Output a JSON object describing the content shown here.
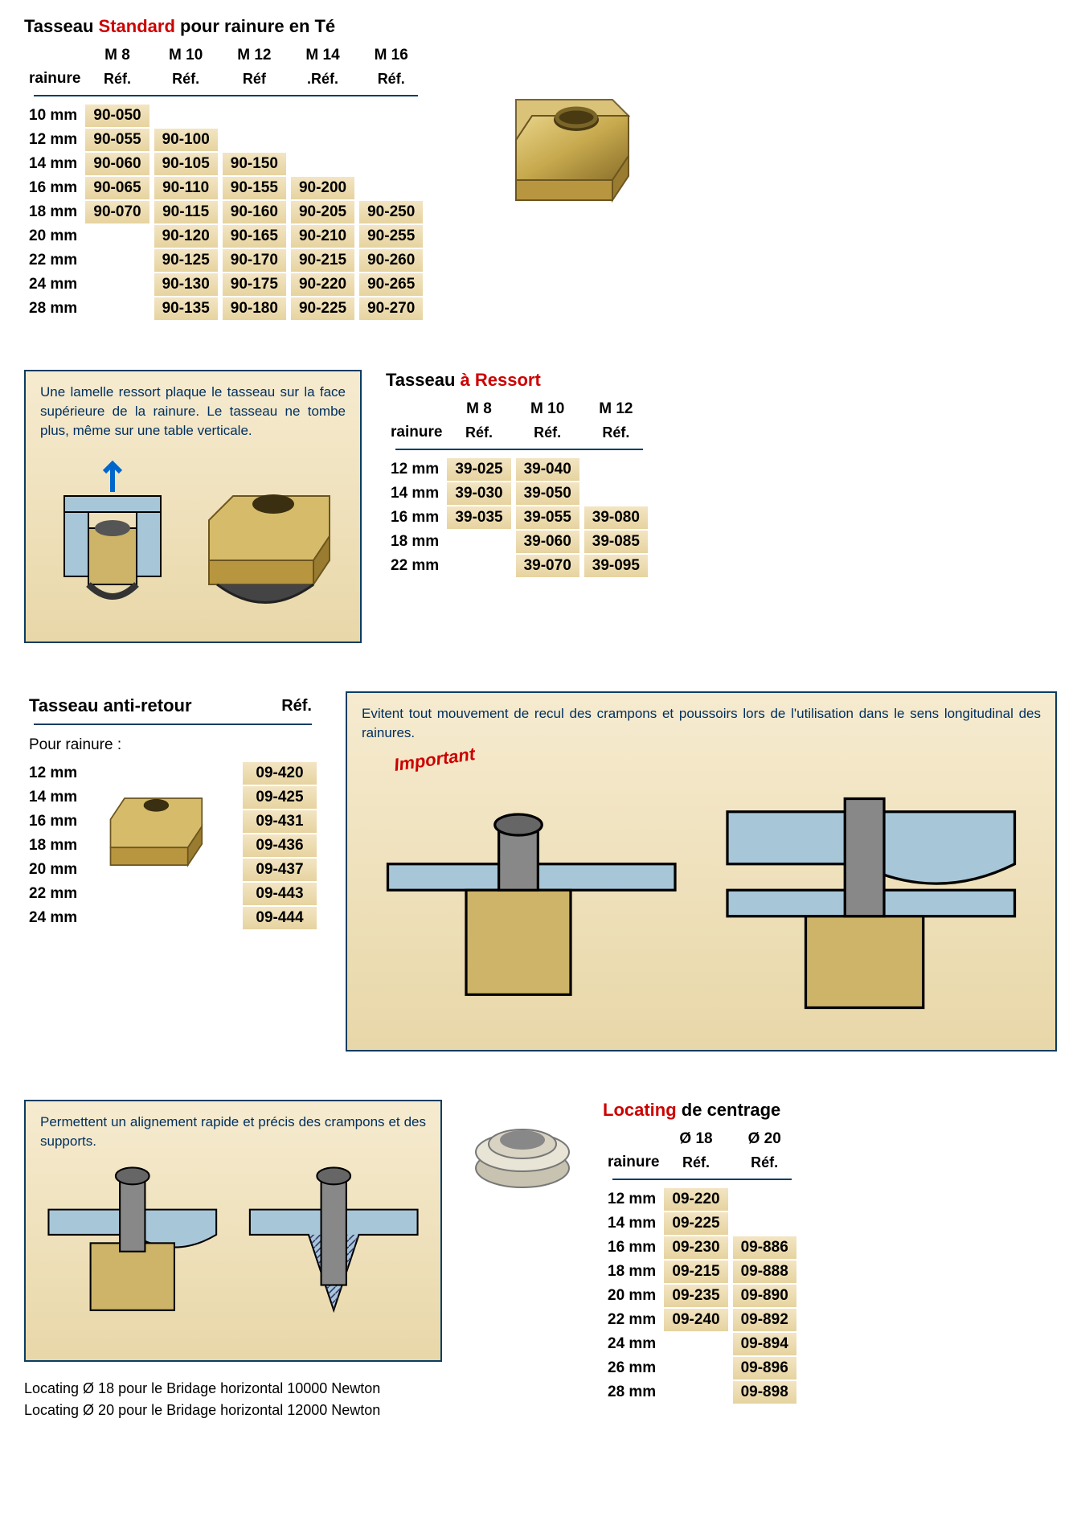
{
  "colors": {
    "accent_red": "#cc0000",
    "border_blue": "#0a3d62",
    "text_blue": "#003060",
    "cell_bg_top": "#f3e5c4",
    "cell_bg_bot": "#e6d39f",
    "page_bg": "#ffffff"
  },
  "fonts": {
    "title_size": 22,
    "header_size": 19,
    "cell_size": 19,
    "info_size": 17
  },
  "section1": {
    "title_pre": "Tasseau ",
    "title_red": "Standard",
    "title_post": " pour rainure en Té",
    "col_rainure": "rainure",
    "ref_label": "Réf.",
    "ref_label_m12": "Réf",
    "ref_label_m14": ".Réf.",
    "cols": [
      "M 8",
      "M 10",
      "M 12",
      "M 14",
      "M 16"
    ],
    "rows": [
      {
        "r": "10 mm",
        "v": [
          "90-050",
          "",
          "",
          "",
          ""
        ]
      },
      {
        "r": "12 mm",
        "v": [
          "90-055",
          "90-100",
          "",
          "",
          ""
        ]
      },
      {
        "r": "14 mm",
        "v": [
          "90-060",
          "90-105",
          "90-150",
          "",
          ""
        ]
      },
      {
        "r": "16 mm",
        "v": [
          "90-065",
          "90-110",
          "90-155",
          "90-200",
          ""
        ]
      },
      {
        "r": "18 mm",
        "v": [
          "90-070",
          "90-115",
          "90-160",
          "90-205",
          "90-250"
        ]
      },
      {
        "r": "20 mm",
        "v": [
          "",
          "90-120",
          "90-165",
          "90-210",
          "90-255"
        ]
      },
      {
        "r": "22 mm",
        "v": [
          "",
          "90-125",
          "90-170",
          "90-215",
          "90-260"
        ]
      },
      {
        "r": "24 mm",
        "v": [
          "",
          "90-130",
          "90-175",
          "90-220",
          "90-265"
        ]
      },
      {
        "r": "28 mm",
        "v": [
          "",
          "90-135",
          "90-180",
          "90-225",
          "90-270"
        ]
      }
    ]
  },
  "section2": {
    "info_text": "Une lamelle ressort plaque le tasseau sur la face supérieure de la rainure.  Le tasseau ne tombe plus, même sur une table verticale.",
    "title_pre": "Tasseau ",
    "title_red": "à Ressort",
    "col_rainure": "rainure",
    "ref_label": "Réf.",
    "cols": [
      "M 8",
      "M 10",
      "M 12"
    ],
    "rows": [
      {
        "r": "12 mm",
        "v": [
          "39-025",
          "39-040",
          ""
        ]
      },
      {
        "r": "14 mm",
        "v": [
          "39-030",
          "39-050",
          ""
        ]
      },
      {
        "r": "16 mm",
        "v": [
          "39-035",
          "39-055",
          "39-080"
        ]
      },
      {
        "r": "18 mm",
        "v": [
          "",
          "39-060",
          "39-085"
        ]
      },
      {
        "r": "22 mm",
        "v": [
          "",
          "39-070",
          "39-095"
        ]
      }
    ]
  },
  "section3": {
    "title": "Tasseau anti-retour",
    "ref_label": "Réf.",
    "sub_label": "Pour rainure :",
    "rows": [
      {
        "r": "12 mm",
        "v": "09-420"
      },
      {
        "r": "14 mm",
        "v": "09-425"
      },
      {
        "r": "16 mm",
        "v": "09-431"
      },
      {
        "r": "18 mm",
        "v": "09-436"
      },
      {
        "r": "20 mm",
        "v": "09-437"
      },
      {
        "r": "22 mm",
        "v": "09-443"
      },
      {
        "r": "24 mm",
        "v": "09-444"
      }
    ],
    "info_text": "Evitent tout mouvement de recul des crampons et poussoirs lors de l'utilisation dans le sens longitudinal des rainures.",
    "important": "Important"
  },
  "section4": {
    "info_text": "Permettent un alignement rapide et précis des crampons et des supports.",
    "foot1": "Locating Ø 18 pour le Bridage horizontal 10000 Newton",
    "foot2": "Locating Ø 20 pour le Bridage horizontal 12000 Newton",
    "title_red": "Locating",
    "title_post": " de centrage",
    "col_rainure": "rainure",
    "ref_label": "Réf.",
    "cols": [
      "Ø 18",
      "Ø 20"
    ],
    "rows": [
      {
        "r": "12 mm",
        "v": [
          "09-220",
          ""
        ]
      },
      {
        "r": "14 mm",
        "v": [
          "09-225",
          ""
        ]
      },
      {
        "r": "16 mm",
        "v": [
          "09-230",
          "09-886"
        ]
      },
      {
        "r": "18 mm",
        "v": [
          "09-215",
          "09-888"
        ]
      },
      {
        "r": "20 mm",
        "v": [
          "09-235",
          "09-890"
        ]
      },
      {
        "r": "22 mm",
        "v": [
          "09-240",
          "09-892"
        ]
      },
      {
        "r": "24 mm",
        "v": [
          "",
          "09-894"
        ]
      },
      {
        "r": "26 mm",
        "v": [
          "",
          "09-896"
        ]
      },
      {
        "r": "28 mm",
        "v": [
          "",
          "09-898"
        ]
      }
    ]
  }
}
